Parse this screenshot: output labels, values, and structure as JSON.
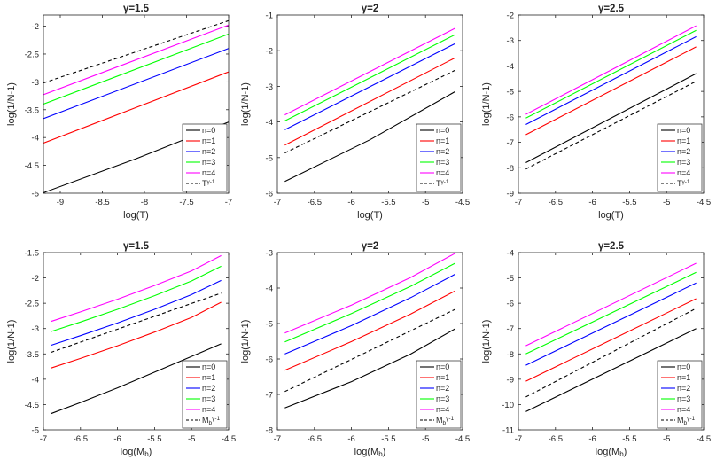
{
  "figure": {
    "background": "#ffffff"
  },
  "colors": {
    "n=0": "#000000",
    "n=1": "#ff0000",
    "n=2": "#0000ff",
    "n=3": "#00ff00",
    "n=4": "#ff00ff",
    "ref": "#000000"
  },
  "chart_data": [
    {
      "type": "line",
      "title": "γ=1.5",
      "xlabel": "log(T)",
      "ylabel": "log(1/N-1)",
      "xlim": [
        -9.2,
        -7
      ],
      "ylim": [
        -5,
        -1.8
      ],
      "xticks": [
        -9,
        -8.5,
        -8,
        -7.5,
        -7
      ],
      "xtick_labels": [
        "-9",
        "-8.5",
        "-8",
        "-7.5",
        "-7"
      ],
      "yticks": [
        -5,
        -4.5,
        -4,
        -3.5,
        -3,
        -2.5,
        -2
      ],
      "ytick_labels": [
        "-5",
        "-4.5",
        "-4",
        "-3.5",
        "-3",
        "-2.5",
        "-2"
      ],
      "legend": [
        "n=0",
        "n=1",
        "n=2",
        "n=3",
        "n=4",
        "T",
        "γ-1"
      ],
      "legend_position": "bottom-right",
      "series": [
        {
          "name": "n=0",
          "color": "#000000",
          "dash": false,
          "x": [
            -9.2,
            -8.1,
            -7
          ],
          "y": [
            -4.99,
            -4.38,
            -3.72
          ]
        },
        {
          "name": "n=1",
          "color": "#ff0000",
          "dash": false,
          "x": [
            -9.2,
            -7
          ],
          "y": [
            -4.1,
            -2.82
          ]
        },
        {
          "name": "n=2",
          "color": "#0000ff",
          "dash": false,
          "x": [
            -9.2,
            -7
          ],
          "y": [
            -3.66,
            -2.4
          ]
        },
        {
          "name": "n=3",
          "color": "#00ff00",
          "dash": false,
          "x": [
            -9.2,
            -7
          ],
          "y": [
            -3.4,
            -2.14
          ]
        },
        {
          "name": "n=4",
          "color": "#ff00ff",
          "dash": false,
          "x": [
            -9.2,
            -7
          ],
          "y": [
            -3.23,
            -1.98
          ]
        },
        {
          "name": "T",
          "sup": "γ-1",
          "color": "#000000",
          "dash": true,
          "x": [
            -9.2,
            -7
          ],
          "y": [
            -3.02,
            -1.9
          ]
        }
      ]
    },
    {
      "type": "line",
      "title": "γ=2",
      "xlabel": "log(T)",
      "ylabel": "log(1/N-1)",
      "xlim": [
        -7,
        -4.5
      ],
      "ylim": [
        -6,
        -1
      ],
      "xticks": [
        -7,
        -6.5,
        -6,
        -5.5,
        -5,
        -4.5
      ],
      "xtick_labels": [
        "-7",
        "-6.5",
        "-6",
        "-5.5",
        "-5",
        "-4.5"
      ],
      "yticks": [
        -6,
        -5,
        -4,
        -3,
        -2,
        -1
      ],
      "ytick_labels": [
        "-6",
        "-5",
        "-4",
        "-3",
        "-2",
        "-1"
      ],
      "legend": [
        "n=0",
        "n=1",
        "n=2",
        "n=3",
        "n=4",
        "T",
        "γ-1"
      ],
      "legend_position": "bottom-right",
      "series": [
        {
          "name": "n=0",
          "color": "#000000",
          "dash": false,
          "x": [
            -6.9,
            -5.75,
            -4.6
          ],
          "y": [
            -5.67,
            -4.5,
            -3.15
          ]
        },
        {
          "name": "n=1",
          "color": "#ff0000",
          "dash": false,
          "x": [
            -6.9,
            -4.6
          ],
          "y": [
            -4.65,
            -2.2
          ]
        },
        {
          "name": "n=2",
          "color": "#0000ff",
          "dash": false,
          "x": [
            -6.9,
            -4.6
          ],
          "y": [
            -4.22,
            -1.8
          ]
        },
        {
          "name": "n=3",
          "color": "#00ff00",
          "dash": false,
          "x": [
            -6.9,
            -4.6
          ],
          "y": [
            -3.97,
            -1.55
          ]
        },
        {
          "name": "n=4",
          "color": "#ff00ff",
          "dash": false,
          "x": [
            -6.9,
            -4.6
          ],
          "y": [
            -3.8,
            -1.37
          ]
        },
        {
          "name": "T",
          "sup": "γ-1",
          "color": "#000000",
          "dash": true,
          "x": [
            -6.9,
            -4.6
          ],
          "y": [
            -4.87,
            -2.55
          ]
        }
      ]
    },
    {
      "type": "line",
      "title": "γ=2.5",
      "xlabel": "log(T)",
      "ylabel": "log(1/N-1)",
      "xlim": [
        -7,
        -4.5
      ],
      "ylim": [
        -9,
        -2
      ],
      "xticks": [
        -7,
        -6.5,
        -6,
        -5.5,
        -5,
        -4.5
      ],
      "xtick_labels": [
        "-7",
        "-6.5",
        "-6",
        "-5.5",
        "-5",
        "-4.5"
      ],
      "yticks": [
        -9,
        -8,
        -7,
        -6,
        -5,
        -4,
        -3,
        -2
      ],
      "ytick_labels": [
        "-9",
        "-8",
        "-7",
        "-6",
        "-5",
        "-4",
        "-3",
        "-2"
      ],
      "legend": [
        "n=0",
        "n=1",
        "n=2",
        "n=3",
        "n=4",
        "T",
        "γ-1"
      ],
      "legend_position": "bottom-right",
      "series": [
        {
          "name": "n=0",
          "color": "#000000",
          "dash": false,
          "x": [
            -6.9,
            -4.6
          ],
          "y": [
            -7.8,
            -4.3
          ]
        },
        {
          "name": "n=1",
          "color": "#ff0000",
          "dash": false,
          "x": [
            -6.9,
            -4.6
          ],
          "y": [
            -6.7,
            -3.25
          ]
        },
        {
          "name": "n=2",
          "color": "#0000ff",
          "dash": false,
          "x": [
            -6.9,
            -4.6
          ],
          "y": [
            -6.3,
            -2.85
          ]
        },
        {
          "name": "n=3",
          "color": "#00ff00",
          "dash": false,
          "x": [
            -6.9,
            -4.6
          ],
          "y": [
            -6.05,
            -2.6
          ]
        },
        {
          "name": "n=4",
          "color": "#ff00ff",
          "dash": false,
          "x": [
            -6.9,
            -4.6
          ],
          "y": [
            -5.9,
            -2.42
          ]
        },
        {
          "name": "T",
          "sup": "γ-1",
          "color": "#000000",
          "dash": true,
          "x": [
            -6.9,
            -4.6
          ],
          "y": [
            -8.05,
            -4.6
          ]
        }
      ]
    },
    {
      "type": "line",
      "title": "γ=1.5",
      "xlabel": "log(M",
      "xlabel_sub": "b",
      "xlabel_end": ")",
      "ylabel": "log(1/N-1)",
      "xlim": [
        -7,
        -4.5
      ],
      "ylim": [
        -5,
        -1.5
      ],
      "xticks": [
        -7,
        -6.5,
        -6,
        -5.5,
        -5,
        -4.5
      ],
      "xtick_labels": [
        "-7",
        "-6.5",
        "-6",
        "-5.5",
        "-5",
        "-4.5"
      ],
      "yticks": [
        -5,
        -4.5,
        -4,
        -3.5,
        -3,
        -2.5,
        -2,
        -1.5
      ],
      "ytick_labels": [
        "-5",
        "-4.5",
        "-4",
        "-3.5",
        "-3",
        "-2.5",
        "-2",
        "-1.5"
      ],
      "legend": [
        "n=0",
        "n=1",
        "n=2",
        "n=3",
        "n=4",
        "M",
        "b",
        "γ-1"
      ],
      "legend_position": "bottom-right",
      "series": [
        {
          "name": "n=0",
          "color": "#000000",
          "dash": false,
          "x": [
            -6.9,
            -6.5,
            -6,
            -5.5,
            -5,
            -4.6
          ],
          "y": [
            -4.68,
            -4.46,
            -4.17,
            -3.86,
            -3.55,
            -3.3
          ]
        },
        {
          "name": "n=1",
          "color": "#ff0000",
          "dash": false,
          "x": [
            -6.9,
            -6.5,
            -6,
            -5.5,
            -5,
            -4.6
          ],
          "y": [
            -3.78,
            -3.59,
            -3.34,
            -3.07,
            -2.78,
            -2.48
          ]
        },
        {
          "name": "n=2",
          "color": "#0000ff",
          "dash": false,
          "x": [
            -6.9,
            -6.5,
            -6,
            -5.5,
            -5,
            -4.6
          ],
          "y": [
            -3.33,
            -3.14,
            -2.89,
            -2.62,
            -2.33,
            -2.05
          ]
        },
        {
          "name": "n=3",
          "color": "#00ff00",
          "dash": false,
          "x": [
            -6.9,
            -6.5,
            -6,
            -5.5,
            -5,
            -4.6
          ],
          "y": [
            -3.06,
            -2.87,
            -2.62,
            -2.35,
            -2.06,
            -1.77
          ]
        },
        {
          "name": "n=4",
          "color": "#ff00ff",
          "dash": false,
          "x": [
            -6.9,
            -6.5,
            -6,
            -5.5,
            -5,
            -4.6
          ],
          "y": [
            -2.86,
            -2.67,
            -2.42,
            -2.15,
            -1.86,
            -1.56
          ]
        },
        {
          "name": "M",
          "sub": "b",
          "sup": "γ-1",
          "color": "#000000",
          "dash": true,
          "x": [
            -6.9,
            -4.6
          ],
          "y": [
            -3.47,
            -2.3
          ]
        }
      ]
    },
    {
      "type": "line",
      "title": "γ=2",
      "xlabel": "log(M",
      "xlabel_sub": "b",
      "xlabel_end": ")",
      "ylabel": "log(1/N-1)",
      "xlim": [
        -7,
        -4.5
      ],
      "ylim": [
        -8,
        -3
      ],
      "xticks": [
        -7,
        -6.5,
        -6,
        -5.5,
        -5,
        -4.5
      ],
      "xtick_labels": [
        "-7",
        "-6.5",
        "-6",
        "-5.5",
        "-5",
        "-4.5"
      ],
      "yticks": [
        -8,
        -7,
        -6,
        -5,
        -4,
        -3
      ],
      "ytick_labels": [
        "-8",
        "-7",
        "-6",
        "-5",
        "-4",
        "-3"
      ],
      "legend": [
        "n=0",
        "n=1",
        "n=2",
        "n=3",
        "n=4",
        "M",
        "b",
        "γ-1"
      ],
      "legend_position": "bottom-right",
      "series": [
        {
          "name": "n=0",
          "color": "#000000",
          "dash": false,
          "x": [
            -6.9,
            -6,
            -5.2,
            -4.6
          ],
          "y": [
            -7.38,
            -6.64,
            -5.86,
            -5.15
          ]
        },
        {
          "name": "n=1",
          "color": "#ff0000",
          "dash": false,
          "x": [
            -6.9,
            -6,
            -5.2,
            -4.6
          ],
          "y": [
            -6.32,
            -5.51,
            -4.73,
            -4.08
          ]
        },
        {
          "name": "n=2",
          "color": "#0000ff",
          "dash": false,
          "x": [
            -6.9,
            -6,
            -5.2,
            -4.6
          ],
          "y": [
            -5.86,
            -5.06,
            -4.27,
            -3.61
          ]
        },
        {
          "name": "n=3",
          "color": "#00ff00",
          "dash": false,
          "x": [
            -6.9,
            -6,
            -5.2,
            -4.6
          ],
          "y": [
            -5.52,
            -4.72,
            -3.95,
            -3.3
          ]
        },
        {
          "name": "n=4",
          "color": "#ff00ff",
          "dash": false,
          "x": [
            -6.9,
            -6,
            -5.2,
            -4.6
          ],
          "y": [
            -5.27,
            -4.48,
            -3.7,
            -3.02
          ]
        },
        {
          "name": "M",
          "sub": "b",
          "sup": "γ-1",
          "color": "#000000",
          "dash": true,
          "x": [
            -6.9,
            -4.6
          ],
          "y": [
            -6.92,
            -4.6
          ]
        }
      ]
    },
    {
      "type": "line",
      "title": "γ=2.5",
      "xlabel": "log(M",
      "xlabel_sub": "b",
      "xlabel_end": ")",
      "ylabel": "log(1/N-1)",
      "xlim": [
        -7,
        -4.5
      ],
      "ylim": [
        -11,
        -4
      ],
      "xticks": [
        -7,
        -6.5,
        -6,
        -5.5,
        -5,
        -4.5
      ],
      "xtick_labels": [
        "-7",
        "-6.5",
        "-6",
        "-5.5",
        "-5",
        "-4.5"
      ],
      "yticks": [
        -11,
        -10,
        -9,
        -8,
        -7,
        -6,
        -5,
        -4
      ],
      "ytick_labels": [
        "-11",
        "-10",
        "-9",
        "-8",
        "-7",
        "-6",
        "-5",
        "-4"
      ],
      "legend": [
        "n=0",
        "n=1",
        "n=2",
        "n=3",
        "n=4",
        "M",
        "b",
        "γ-1"
      ],
      "legend_position": "bottom-right",
      "series": [
        {
          "name": "n=0",
          "color": "#000000",
          "dash": false,
          "x": [
            -6.9,
            -4.6
          ],
          "y": [
            -10.28,
            -7.0
          ]
        },
        {
          "name": "n=1",
          "color": "#ff0000",
          "dash": false,
          "x": [
            -6.9,
            -4.6
          ],
          "y": [
            -9.08,
            -5.82
          ]
        },
        {
          "name": "n=2",
          "color": "#0000ff",
          "dash": false,
          "x": [
            -6.9,
            -4.6
          ],
          "y": [
            -8.45,
            -5.2
          ]
        },
        {
          "name": "n=3",
          "color": "#00ff00",
          "dash": false,
          "x": [
            -6.9,
            -4.6
          ],
          "y": [
            -8.0,
            -4.78
          ]
        },
        {
          "name": "n=4",
          "color": "#ff00ff",
          "dash": false,
          "x": [
            -6.9,
            -4.6
          ],
          "y": [
            -7.68,
            -4.42
          ]
        },
        {
          "name": "M",
          "sub": "b",
          "sup": "γ-1",
          "color": "#000000",
          "dash": true,
          "x": [
            -6.9,
            -4.6
          ],
          "y": [
            -9.7,
            -6.2
          ]
        }
      ]
    }
  ]
}
